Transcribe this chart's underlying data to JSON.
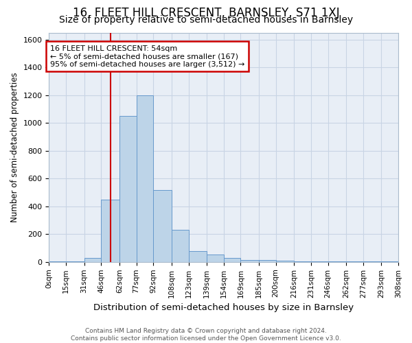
{
  "title": "16, FLEET HILL CRESCENT, BARNSLEY, S71 1XJ",
  "subtitle": "Size of property relative to semi-detached houses in Barnsley",
  "xlabel": "Distribution of semi-detached houses by size in Barnsley",
  "ylabel": "Number of semi-detached properties",
  "bin_edges": [
    0,
    15,
    31,
    46,
    62,
    77,
    92,
    108,
    123,
    139,
    154,
    169,
    185,
    200,
    216,
    231,
    246,
    262,
    277,
    293,
    308
  ],
  "bin_labels": [
    "0sqm",
    "15sqm",
    "31sqm",
    "46sqm",
    "62sqm",
    "77sqm",
    "92sqm",
    "108sqm",
    "123sqm",
    "139sqm",
    "154sqm",
    "169sqm",
    "185sqm",
    "200sqm",
    "216sqm",
    "231sqm",
    "246sqm",
    "262sqm",
    "277sqm",
    "293sqm",
    "308sqm"
  ],
  "bar_heights": [
    5,
    5,
    30,
    450,
    1050,
    1200,
    515,
    230,
    80,
    55,
    30,
    15,
    15,
    10,
    5,
    5,
    5,
    5,
    5,
    5
  ],
  "bar_color": "#bdd4e8",
  "bar_edge_color": "#6699cc",
  "property_size": 54,
  "vline_color": "#cc0000",
  "annotation_box_edge": "#cc0000",
  "ylim": [
    0,
    1650
  ],
  "yticks": [
    0,
    200,
    400,
    600,
    800,
    1000,
    1200,
    1400,
    1600
  ],
  "grid_color": "#c8d4e4",
  "bg_color": "#e8eef6",
  "title_fontsize": 12,
  "subtitle_fontsize": 10,
  "footer_text": "Contains HM Land Registry data © Crown copyright and database right 2024.\nContains public sector information licensed under the Open Government Licence v3.0."
}
